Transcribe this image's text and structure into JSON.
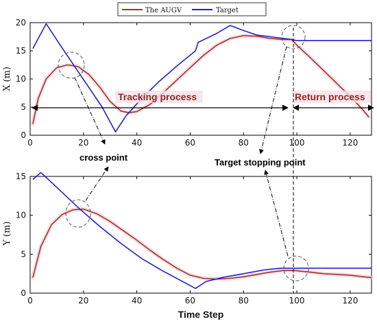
{
  "legend": {
    "items": [
      {
        "label": "The AUGV",
        "color": "#a0322a"
      },
      {
        "label": "Target",
        "color": "#2020d0"
      }
    ]
  },
  "chart_data": [
    {
      "type": "line",
      "ylabel": "X (m)",
      "xlim": [
        0,
        128
      ],
      "ylim": [
        0,
        20
      ],
      "xticks": [
        0,
        20,
        40,
        60,
        80,
        100,
        120
      ],
      "yticks": [
        0,
        5,
        10,
        15,
        20
      ],
      "series": [
        {
          "name": "The AUGV",
          "color": "#a0322a",
          "x": [
            1,
            3,
            6,
            10,
            14,
            18,
            22,
            26,
            30,
            34,
            37,
            40,
            45,
            50,
            55,
            60,
            65,
            70,
            75,
            80,
            85,
            90,
            95,
            98,
            100,
            105,
            110,
            115,
            120,
            125,
            127
          ],
          "y": [
            2,
            6.5,
            10,
            12,
            12.5,
            12.2,
            10.8,
            8.6,
            6,
            4.3,
            4,
            4.2,
            5.5,
            7.6,
            9.8,
            12,
            14.2,
            16,
            17.2,
            17.7,
            17.6,
            17.2,
            17,
            17,
            16,
            13.8,
            11.5,
            9.2,
            6.9,
            4.4,
            3.2
          ]
        },
        {
          "name": "Target",
          "color": "#2020d0",
          "x": [
            1,
            6,
            12,
            20,
            27,
            32,
            36,
            42,
            48,
            55,
            62,
            63,
            70,
            75,
            80,
            85,
            90,
            95,
            98,
            100,
            110,
            120,
            128
          ],
          "y": [
            15.4,
            19.8,
            15.5,
            9.9,
            5,
            0.6,
            3.5,
            6.6,
            9.4,
            12.3,
            15,
            16.5,
            18.1,
            19.5,
            18.6,
            17.8,
            17.5,
            17.2,
            17,
            16.8,
            16.8,
            16.8,
            16.8
          ]
        }
      ],
      "annotations": {
        "tracking_label": "Tracking process",
        "return_label": "Return process"
      }
    },
    {
      "type": "line",
      "ylabel": "Y (m)",
      "xlabel": "Time Step",
      "xlim": [
        0,
        128
      ],
      "ylim": [
        0,
        15
      ],
      "xticks": [
        0,
        20,
        40,
        60,
        80,
        100,
        120
      ],
      "yticks": [
        0,
        5,
        10,
        15
      ],
      "series": [
        {
          "name": "The AUGV",
          "color": "#a0322a",
          "x": [
            1,
            4,
            8,
            12,
            16,
            20,
            25,
            30,
            35,
            40,
            45,
            50,
            55,
            60,
            65,
            70,
            75,
            80,
            85,
            90,
            95,
            99,
            105,
            110,
            115,
            120,
            125,
            128
          ],
          "y": [
            2,
            6,
            8.8,
            10.1,
            10.7,
            10.8,
            10.2,
            9.2,
            8,
            6.8,
            5.5,
            4.3,
            3.2,
            2.3,
            1.9,
            1.8,
            1.9,
            2.1,
            2.4,
            2.7,
            2.9,
            2.9,
            2.7,
            2.5,
            2.4,
            2.3,
            2.1,
            2
          ]
        },
        {
          "name": "Target",
          "color": "#2020d0",
          "x": [
            1,
            4,
            10,
            18,
            26,
            34,
            42,
            50,
            56,
            62,
            66,
            72,
            80,
            88,
            94,
            98,
            105,
            115,
            128
          ],
          "y": [
            14.6,
            15.5,
            13.6,
            11,
            8.6,
            6.4,
            4.4,
            2.8,
            1.7,
            0.6,
            1.5,
            2,
            2.5,
            3,
            3.2,
            3.2,
            3.2,
            3.2,
            3.2
          ]
        }
      ]
    }
  ],
  "annotations": {
    "cross_point": "cross point",
    "target_stopping_point": "Target stopping point"
  }
}
